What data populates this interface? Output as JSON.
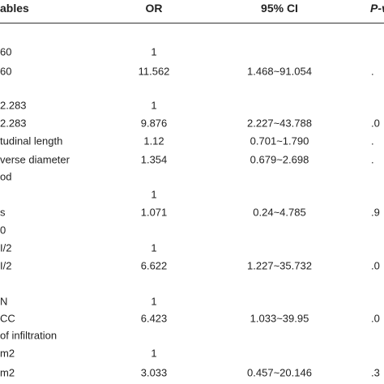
{
  "table": {
    "header": {
      "variable": "ables",
      "or": "OR",
      "ci": "95% CI",
      "p": "P-v"
    },
    "rows": [
      {
        "variable": "60",
        "or": "1"
      },
      {
        "variable": "60",
        "or": "11.562",
        "ci": "1.468~91.054",
        "p": "."
      },
      {
        "variable": "2.283",
        "or": "1"
      },
      {
        "variable": "2.283",
        "or": "9.876",
        "ci": "2.227~43.788",
        "p": ".0"
      },
      {
        "variable": "tudinal length",
        "or": "1.12",
        "ci": "0.701~1.790",
        "p": "."
      },
      {
        "variable": "verse diameter",
        "or": "1.354",
        "ci": "0.679~2.698",
        "p": "."
      },
      {
        "variable": "od"
      },
      {
        "or": "1"
      },
      {
        "variable": "s",
        "or": "1.071",
        "ci": "0.24~4.785",
        "p": ".9"
      },
      {
        "variable": "0"
      },
      {
        "variable": "I/2",
        "or": "1"
      },
      {
        "variable": "I/2",
        "or": "6.622",
        "ci": "1.227~35.732",
        "p": ".0"
      },
      {
        "variable": "N",
        "or": "1"
      },
      {
        "variable": "CC",
        "or": "6.423",
        "ci": "1.033~39.95",
        "p": ".0"
      },
      {
        "variable": "of infiltration"
      },
      {
        "variable": "m2",
        "or": "1"
      },
      {
        "variable": "m2",
        "or": "3.033",
        "ci": "0.457~20.146",
        "p": ".3"
      }
    ]
  }
}
